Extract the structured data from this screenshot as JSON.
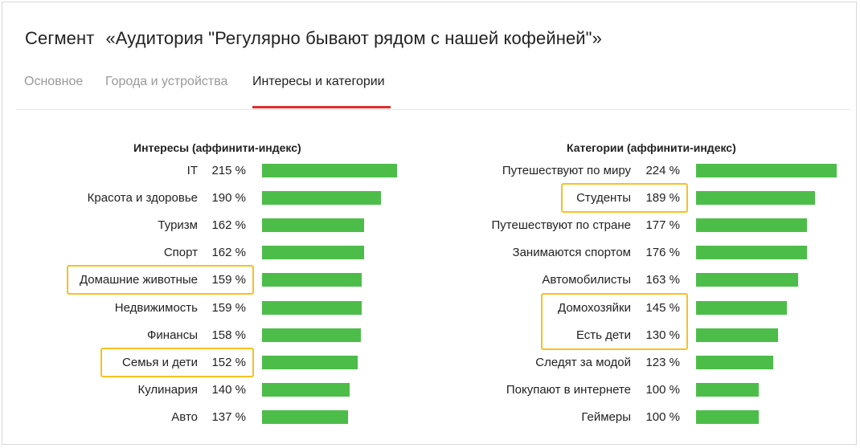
{
  "header": {
    "segment_label": "Сегмент",
    "segment_name": "«Аудитория \"Регулярно бывают рядом с нашей кофейней\"»"
  },
  "tabs": [
    {
      "label": "Основное",
      "active": false
    },
    {
      "label": "Города и устройства",
      "active": false
    },
    {
      "label": "Интересы и категории",
      "active": true
    }
  ],
  "colors": {
    "bar": "#4dbd4a",
    "highlight": "#f6c122",
    "tab_active_underline": "#e52d2d"
  },
  "chart_data": [
    {
      "type": "bar",
      "orientation": "horizontal",
      "title": "Интересы (аффинити-индекс)",
      "unit": "%",
      "categories": [
        "IT",
        "Красота и здоровье",
        "Туризм",
        "Спорт",
        "Домашние животные",
        "Недвижимость",
        "Финансы",
        "Семья и дети",
        "Кулинария",
        "Авто"
      ],
      "values": [
        215,
        190,
        162,
        162,
        159,
        159,
        158,
        152,
        140,
        137
      ],
      "value_labels": [
        "215 %",
        "190 %",
        "162 %",
        "162 %",
        "159 %",
        "159 %",
        "158 %",
        "152 %",
        "140 %",
        "137 %"
      ],
      "highlighted": [
        "Домашние животные",
        "Семья и дети"
      ],
      "xlim": [
        0,
        230
      ]
    },
    {
      "type": "bar",
      "orientation": "horizontal",
      "title": "Категории (аффинити-индекс)",
      "unit": "%",
      "categories": [
        "Путешествуют по миру",
        "Студенты",
        "Путешествуют по стране",
        "Занимаются спортом",
        "Автомобилисты",
        "Домохозяйки",
        "Есть дети",
        "Следят за модой",
        "Покупают в интернете",
        "Геймеры"
      ],
      "values": [
        224,
        189,
        177,
        176,
        163,
        145,
        130,
        123,
        100,
        100
      ],
      "value_labels": [
        "224 %",
        "189 %",
        "177 %",
        "176 %",
        "163 %",
        "145 %",
        "130 %",
        "123 %",
        "100 %",
        "100 %"
      ],
      "highlighted": [
        "Студенты",
        "Домохозяйки",
        "Есть дети"
      ],
      "xlim": [
        0,
        230
      ]
    }
  ]
}
